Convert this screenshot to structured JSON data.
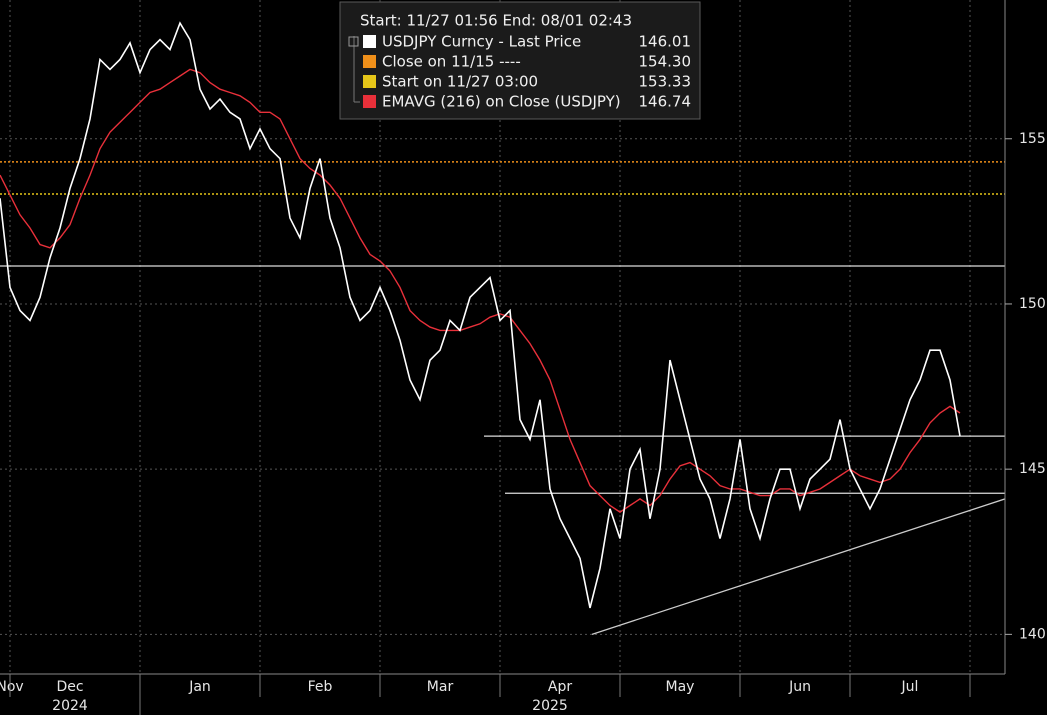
{
  "chart_data": {
    "type": "line",
    "legend_header": "Start: 11/27 01:56 End: 08/01 02:43",
    "categories": [
      null,
      "Nov",
      null,
      null,
      null,
      null,
      null,
      "Dec",
      null,
      null,
      null,
      null,
      null,
      null,
      null,
      null,
      null,
      null,
      null,
      null,
      "Jan",
      null,
      null,
      null,
      null,
      null,
      null,
      null,
      null,
      null,
      null,
      null,
      "Feb",
      null,
      null,
      null,
      null,
      null,
      null,
      null,
      null,
      null,
      null,
      null,
      "Mar",
      null,
      null,
      null,
      null,
      null,
      null,
      null,
      null,
      null,
      null,
      null,
      "Apr",
      null,
      null,
      null,
      null,
      null,
      null,
      null,
      null,
      null,
      null,
      null,
      "May",
      null,
      null,
      null,
      null,
      null,
      null,
      null,
      null,
      null,
      null,
      null,
      "Jun",
      null,
      null,
      null,
      null,
      null,
      null,
      null,
      null,
      null,
      null,
      "Jul",
      null,
      null,
      null,
      null,
      null
    ],
    "year_labels": [
      null,
      null,
      null,
      null,
      null,
      null,
      null,
      "2024",
      null,
      null,
      null,
      null,
      null,
      null,
      null,
      null,
      null,
      null,
      null,
      null,
      null,
      null,
      null,
      null,
      null,
      null,
      null,
      null,
      null,
      null,
      null,
      null,
      null,
      null,
      null,
      null,
      null,
      null,
      null,
      null,
      null,
      null,
      null,
      null,
      null,
      null,
      null,
      null,
      null,
      null,
      null,
      null,
      null,
      null,
      null,
      "2025",
      null,
      null,
      null,
      null,
      null,
      null,
      null,
      null,
      null,
      null,
      null,
      null,
      null,
      null,
      null,
      null,
      null,
      null,
      null,
      null,
      null,
      null,
      null,
      null,
      null,
      null,
      null,
      null,
      null,
      null,
      null,
      null,
      null,
      null,
      null,
      null,
      null,
      null,
      null,
      null,
      null
    ],
    "series": [
      {
        "name": "USDJPY Curncy - Last Price",
        "color": "#ffffff",
        "last_label": "146.01",
        "values": [
          153.2,
          150.5,
          149.8,
          149.5,
          150.2,
          151.4,
          152.3,
          153.5,
          154.4,
          155.6,
          157.4,
          157.1,
          157.4,
          157.9,
          157.0,
          157.7,
          158.0,
          157.7,
          158.5,
          158.0,
          156.5,
          155.9,
          156.2,
          155.8,
          155.6,
          154.7,
          155.3,
          154.7,
          154.4,
          152.6,
          152.0,
          153.5,
          154.4,
          152.6,
          151.7,
          150.2,
          149.5,
          149.8,
          150.5,
          149.8,
          148.9,
          147.7,
          147.1,
          148.3,
          148.6,
          149.5,
          149.2,
          150.2,
          150.5,
          150.8,
          149.5,
          149.8,
          146.5,
          145.9,
          147.1,
          144.4,
          143.5,
          142.9,
          142.3,
          140.8,
          142.0,
          143.8,
          142.9,
          145.0,
          145.6,
          143.5,
          145.0,
          148.3,
          147.1,
          145.9,
          144.7,
          144.1,
          142.9,
          144.1,
          145.9,
          143.8,
          142.9,
          144.1,
          145.0,
          145.0,
          143.8,
          144.7,
          145.0,
          145.3,
          146.5,
          145.0,
          144.4,
          143.8,
          144.4,
          145.3,
          146.2,
          147.1,
          147.7,
          148.6,
          148.6,
          147.7,
          146.0
        ]
      },
      {
        "name": "EMAVG (216)  on Close (USDJPY)",
        "color": "#e8303a",
        "last_label": "146.74",
        "values": [
          153.9,
          153.3,
          152.7,
          152.3,
          151.8,
          151.7,
          152.0,
          152.4,
          153.2,
          153.9,
          154.7,
          155.2,
          155.5,
          155.8,
          156.1,
          156.4,
          156.5,
          156.7,
          156.9,
          157.1,
          157.0,
          156.7,
          156.5,
          156.4,
          156.3,
          156.1,
          155.8,
          155.8,
          155.6,
          155.0,
          154.4,
          154.1,
          153.9,
          153.6,
          153.2,
          152.6,
          152.0,
          151.5,
          151.3,
          151.0,
          150.5,
          149.8,
          149.5,
          149.3,
          149.2,
          149.2,
          149.2,
          149.3,
          149.4,
          149.6,
          149.7,
          149.6,
          149.2,
          148.8,
          148.3,
          147.7,
          146.8,
          145.9,
          145.2,
          144.5,
          144.2,
          143.9,
          143.7,
          143.9,
          144.1,
          143.9,
          144.2,
          144.7,
          145.1,
          145.2,
          145.0,
          144.8,
          144.5,
          144.4,
          144.4,
          144.3,
          144.2,
          144.2,
          144.4,
          144.4,
          144.2,
          144.3,
          144.4,
          144.6,
          144.8,
          145.0,
          144.8,
          144.7,
          144.6,
          144.7,
          145.0,
          145.5,
          145.9,
          146.4,
          146.7,
          146.9,
          146.7
        ]
      }
    ],
    "hlines": [
      {
        "name": "Close on 11/15 ----",
        "color": "#f0901a",
        "value": 154.3,
        "label": "154.30"
      },
      {
        "name": "Start on 11/27 03:00",
        "color": "#e6c619",
        "value": 153.33,
        "label": "153.33"
      }
    ],
    "annotation_lines": [
      {
        "value": 151.15,
        "from": 0
      },
      {
        "value": 146.0,
        "from": 48.4
      },
      {
        "value": 144.27,
        "from": 50.5
      }
    ],
    "trendline": {
      "from": [
        59.2,
        140.0
      ],
      "to": [
        100.5,
        144.1
      ]
    },
    "ylim": [
      138.8,
      159.2
    ],
    "yticks": [
      140,
      145,
      150,
      155
    ],
    "grid": true
  }
}
